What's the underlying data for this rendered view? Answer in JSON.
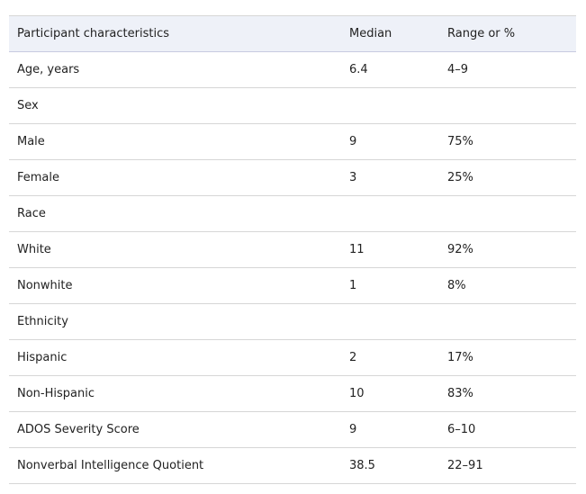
{
  "table": {
    "header": [
      "Participant characteristics",
      "Median",
      "Range or %"
    ],
    "rows": [
      [
        "Age, years",
        "6.4",
        "4–9"
      ],
      [
        "Sex",
        "",
        ""
      ],
      [
        "Male",
        "9",
        "75%"
      ],
      [
        "Female",
        "3",
        "25%"
      ],
      [
        "Race",
        "",
        ""
      ],
      [
        "White",
        "11",
        "92%"
      ],
      [
        "Nonwhite",
        "1",
        "8%"
      ],
      [
        "Ethnicity",
        "",
        ""
      ],
      [
        "Hispanic",
        "2",
        "17%"
      ],
      [
        "Non-Hispanic",
        "10",
        "83%"
      ],
      [
        "ADOS Severity Score",
        "9",
        "6–10"
      ],
      [
        "Nonverbal Intelligence Quotient",
        "38.5",
        "22–91"
      ]
    ]
  }
}
